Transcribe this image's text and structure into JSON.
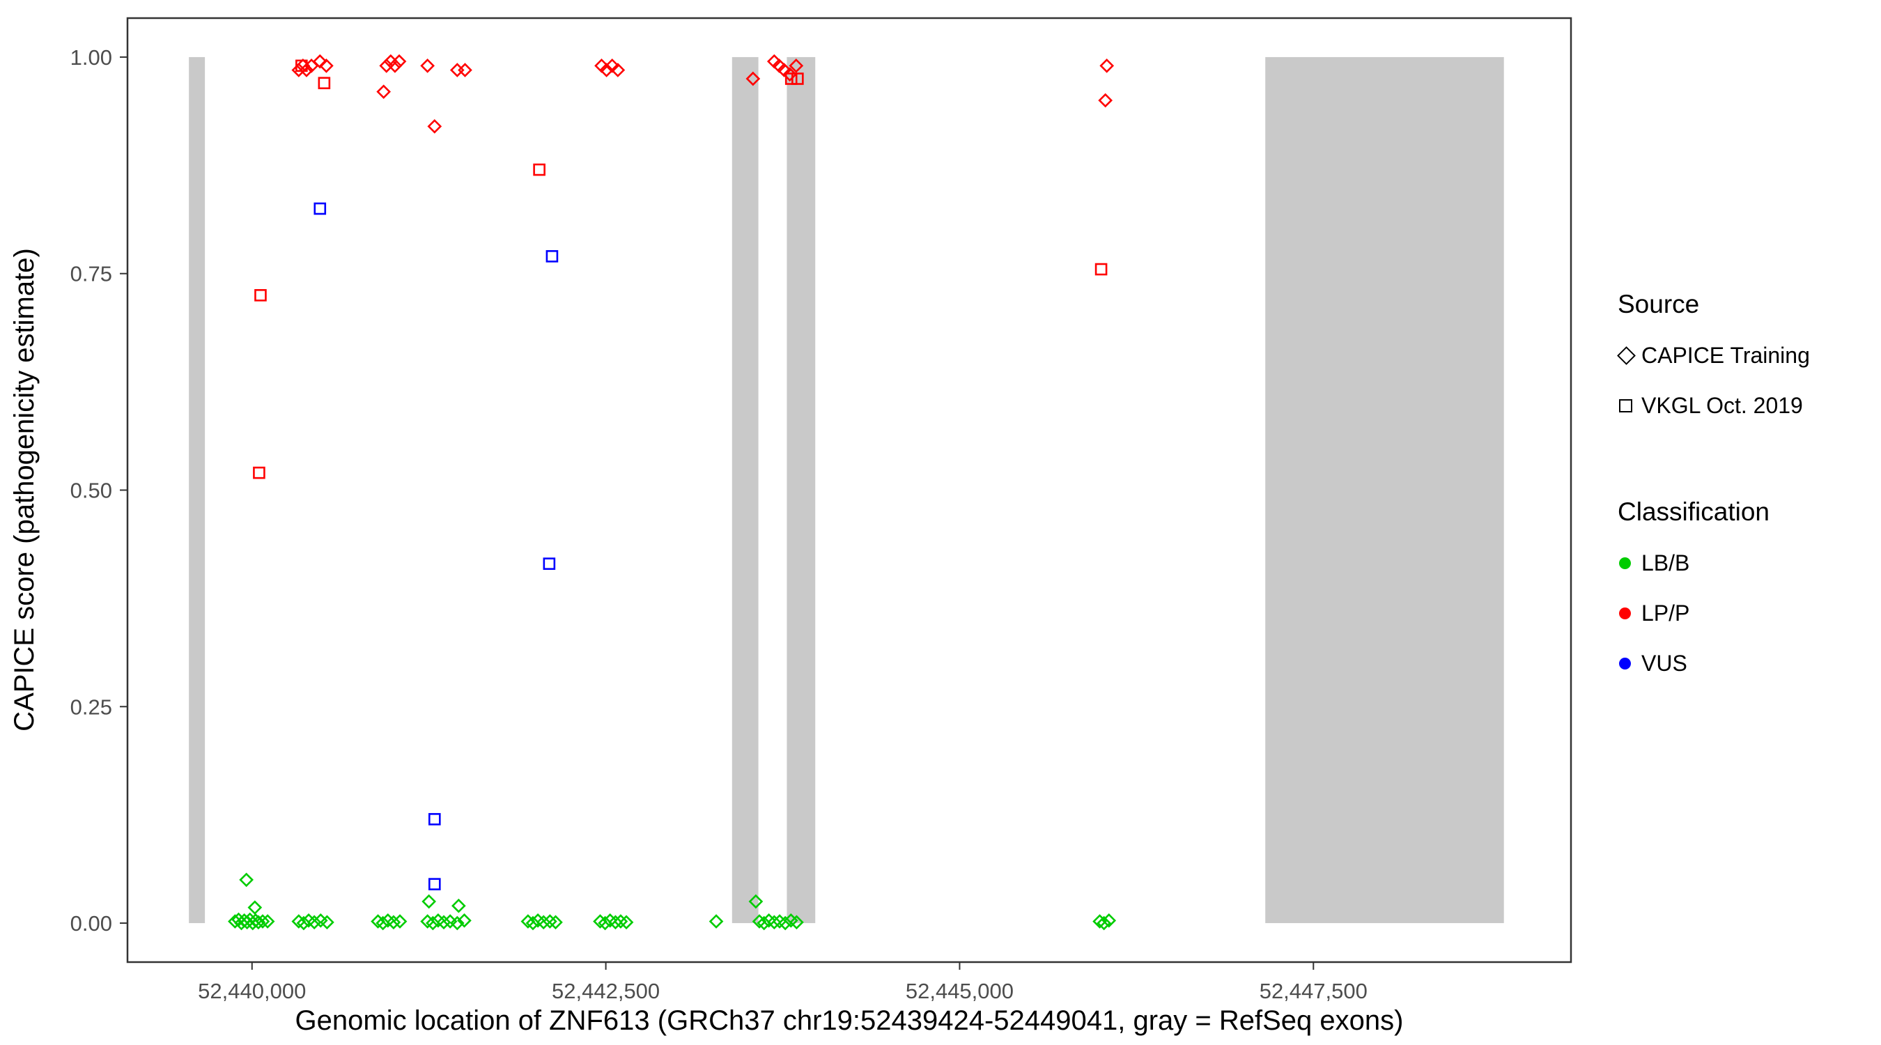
{
  "figure": {
    "background": "#FFFFFF",
    "panel_border_color": "#333333",
    "tick_color": "#333333",
    "exon_color": "#C9C9C9"
  },
  "chart_data": {
    "type": "scatter",
    "title": "",
    "xlabel": "Genomic location of ZNF613 (GRCh37 chr19:52439424-52449041, gray = RefSeq exons)",
    "ylabel": "CAPICE score (pathogenicity estimate)",
    "xlim": [
      52439120,
      52449320
    ],
    "ylim": [
      -0.045,
      1.045
    ],
    "grid": false,
    "legend_position": "right",
    "x_ticks": [
      {
        "value": 52440000,
        "label": "52,440,000"
      },
      {
        "value": 52442500,
        "label": "52,442,500"
      },
      {
        "value": 52445000,
        "label": "52,445,000"
      },
      {
        "value": 52447500,
        "label": "52,447,500"
      }
    ],
    "y_ticks": [
      {
        "value": 0.0,
        "label": "0.00"
      },
      {
        "value": 0.25,
        "label": "0.25"
      },
      {
        "value": 0.5,
        "label": "0.50"
      },
      {
        "value": 0.75,
        "label": "0.75"
      },
      {
        "value": 1.0,
        "label": "1.00"
      }
    ],
    "exon_y_range": [
      0.0,
      1.0
    ],
    "exons": [
      {
        "start": 52439554,
        "end": 52439667
      },
      {
        "start": 52443392,
        "end": 52443578
      },
      {
        "start": 52443779,
        "end": 52443980
      },
      {
        "start": 52447160,
        "end": 52448846
      }
    ],
    "series": [
      {
        "source": "CAPICE Training",
        "classification": "LP/P",
        "shape": "diamond",
        "color": "#FF0000",
        "points": [
          [
            52440330,
            0.985
          ],
          [
            52440360,
            0.99
          ],
          [
            52440385,
            0.985
          ],
          [
            52440420,
            0.99
          ],
          [
            52440480,
            0.995
          ],
          [
            52440525,
            0.99
          ],
          [
            52440930,
            0.96
          ],
          [
            52440950,
            0.99
          ],
          [
            52440980,
            0.995
          ],
          [
            52441010,
            0.99
          ],
          [
            52441040,
            0.995
          ],
          [
            52441240,
            0.99
          ],
          [
            52441290,
            0.92
          ],
          [
            52441450,
            0.985
          ],
          [
            52441505,
            0.985
          ],
          [
            52442470,
            0.99
          ],
          [
            52442505,
            0.985
          ],
          [
            52442545,
            0.99
          ],
          [
            52442585,
            0.985
          ],
          [
            52443540,
            0.975
          ],
          [
            52443690,
            0.995
          ],
          [
            52443725,
            0.99
          ],
          [
            52443760,
            0.985
          ],
          [
            52443800,
            0.98
          ],
          [
            52443845,
            0.99
          ],
          [
            52446040,
            0.99
          ],
          [
            52446030,
            0.95
          ]
        ]
      },
      {
        "source": "VKGL Oct. 2019",
        "classification": "LP/P",
        "shape": "square",
        "color": "#FF0000",
        "points": [
          [
            52440060,
            0.725
          ],
          [
            52440050,
            0.52
          ],
          [
            52440350,
            0.99
          ],
          [
            52440510,
            0.97
          ],
          [
            52442030,
            0.87
          ],
          [
            52443810,
            0.975
          ],
          [
            52443855,
            0.975
          ],
          [
            52446000,
            0.755
          ]
        ]
      },
      {
        "source": "VKGL Oct. 2019",
        "classification": "VUS",
        "shape": "square",
        "color": "#0000FF",
        "points": [
          [
            52440480,
            0.825
          ],
          [
            52441290,
            0.12
          ],
          [
            52441290,
            0.045
          ],
          [
            52442100,
            0.415
          ],
          [
            52442120,
            0.77
          ]
        ]
      },
      {
        "source": "CAPICE Training",
        "classification": "LB/B",
        "shape": "diamond",
        "color": "#00CC00",
        "points": [
          [
            52439960,
            0.05
          ],
          [
            52440020,
            0.018
          ],
          [
            52439880,
            0.002
          ],
          [
            52439905,
            0.004
          ],
          [
            52439925,
            0.0
          ],
          [
            52439945,
            0.003
          ],
          [
            52439965,
            0.001
          ],
          [
            52439985,
            0.004
          ],
          [
            52440005,
            0.0
          ],
          [
            52440025,
            0.003
          ],
          [
            52440045,
            0.001
          ],
          [
            52440075,
            0.002
          ],
          [
            52440110,
            0.002
          ],
          [
            52440330,
            0.002
          ],
          [
            52440365,
            0.0
          ],
          [
            52440400,
            0.003
          ],
          [
            52440440,
            0.001
          ],
          [
            52440485,
            0.003
          ],
          [
            52440530,
            0.001
          ],
          [
            52440890,
            0.002
          ],
          [
            52440925,
            0.0
          ],
          [
            52440960,
            0.003
          ],
          [
            52441000,
            0.001
          ],
          [
            52441045,
            0.002
          ],
          [
            52441250,
            0.025
          ],
          [
            52441460,
            0.02
          ],
          [
            52441240,
            0.002
          ],
          [
            52441278,
            0.0
          ],
          [
            52441315,
            0.003
          ],
          [
            52441355,
            0.001
          ],
          [
            52441400,
            0.002
          ],
          [
            52441450,
            0.0
          ],
          [
            52441500,
            0.003
          ],
          [
            52441950,
            0.002
          ],
          [
            52441985,
            0.0
          ],
          [
            52442020,
            0.003
          ],
          [
            52442060,
            0.001
          ],
          [
            52442105,
            0.002
          ],
          [
            52442145,
            0.001
          ],
          [
            52442460,
            0.002
          ],
          [
            52442495,
            0.0
          ],
          [
            52442530,
            0.003
          ],
          [
            52442568,
            0.001
          ],
          [
            52442605,
            0.002
          ],
          [
            52442645,
            0.001
          ],
          [
            52443280,
            0.002
          ],
          [
            52443560,
            0.025
          ],
          [
            52443585,
            0.002
          ],
          [
            52443618,
            0.0
          ],
          [
            52443652,
            0.003
          ],
          [
            52443690,
            0.001
          ],
          [
            52443728,
            0.002
          ],
          [
            52443768,
            0.0
          ],
          [
            52443808,
            0.003
          ],
          [
            52443848,
            0.001
          ],
          [
            52445990,
            0.002
          ],
          [
            52446020,
            0.0
          ],
          [
            52446055,
            0.003
          ]
        ]
      }
    ]
  },
  "legend": {
    "source_title": "Source",
    "source_items": [
      {
        "label": "CAPICE Training",
        "shape": "diamond"
      },
      {
        "label": "VKGL Oct. 2019",
        "shape": "square"
      }
    ],
    "classification_title": "Classification",
    "classification_items": [
      {
        "label": "LB/B",
        "color": "#00CC00"
      },
      {
        "label": "LP/P",
        "color": "#FF0000"
      },
      {
        "label": "VUS",
        "color": "#0000FF"
      }
    ]
  }
}
